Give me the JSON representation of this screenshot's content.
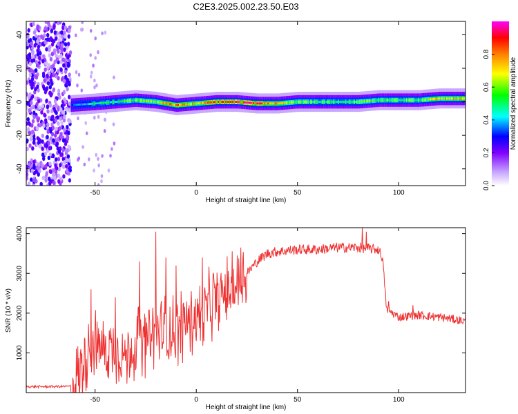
{
  "figure_title": "C2E3.2025.002.23.50.E03",
  "chart_data": [
    {
      "type": "heatmap",
      "xlabel": "Height of straight line (km)",
      "ylabel": "Frequency (Hz)",
      "xlim": [
        -84,
        133
      ],
      "ylim": [
        -50,
        48
      ],
      "xticks": [
        "-50",
        "0",
        "50",
        "100"
      ],
      "yticks": [
        "40",
        "20",
        "0",
        "-20",
        "-40"
      ],
      "colorbar": {
        "label": "Normalized spectral amplitude",
        "range": [
          0,
          1
        ],
        "ticks": [
          "0.0",
          "0.2",
          "0.4",
          "0.6",
          "0.8"
        ],
        "colors": [
          "#ffffff",
          "#8000ff",
          "#0000ff",
          "#00ffff",
          "#00ff00",
          "#ffff00",
          "#ff8000",
          "#ff0000",
          "#ff00ff"
        ]
      },
      "ridge": {
        "x": [
          -62,
          -50,
          -40,
          -30,
          -20,
          -10,
          0,
          10,
          20,
          30,
          40,
          50,
          60,
          70,
          80,
          90,
          100,
          110,
          120,
          133
        ],
        "frequency": [
          -2,
          -1,
          0,
          1,
          0,
          -2,
          -1,
          0,
          0,
          -1,
          -1,
          0,
          0,
          0,
          0,
          1,
          1,
          1,
          2,
          2
        ],
        "amplitude": [
          0.3,
          0.5,
          0.5,
          0.6,
          0.65,
          0.8,
          0.7,
          0.85,
          0.9,
          0.9,
          0.7,
          0.6,
          0.55,
          0.55,
          0.55,
          0.6,
          0.55,
          0.6,
          0.7,
          0.7
        ]
      },
      "noise_region_x": [
        -84,
        -62
      ]
    },
    {
      "type": "line",
      "xlabel": "Height of straight line (km)",
      "ylabel": "SNR (10 * v/v)",
      "xlim": [
        -84,
        133
      ],
      "ylim": [
        0,
        4150
      ],
      "xticks": [
        "-50",
        "0",
        "50",
        "100"
      ],
      "yticks": [
        "4000",
        "3000",
        "2000",
        "1000"
      ],
      "series": [
        {
          "color": "#ee3030",
          "x": [
            -84,
            -70,
            -62,
            -58,
            -55,
            -52,
            -50,
            -45,
            -40,
            -35,
            -30,
            -25,
            -20,
            -15,
            -10,
            -5,
            0,
            5,
            10,
            15,
            20,
            25,
            30,
            35,
            40,
            50,
            60,
            70,
            80,
            90,
            92,
            94,
            100,
            110,
            120,
            133
          ],
          "values": [
            150,
            150,
            160,
            500,
            900,
            1300,
            1200,
            1100,
            1100,
            900,
            1200,
            1300,
            1500,
            1500,
            1600,
            1800,
            1900,
            2100,
            2400,
            2500,
            2700,
            3000,
            3300,
            3500,
            3550,
            3600,
            3600,
            3650,
            3650,
            3600,
            3400,
            2100,
            1900,
            1950,
            1900,
            1800
          ],
          "spikes": [
            [
              -20,
              4050
            ],
            [
              -28,
              3300
            ],
            [
              -52,
              2600
            ],
            [
              -40,
              2400
            ],
            [
              -15,
              3400
            ],
            [
              -10,
              3200
            ],
            [
              3,
              3400
            ],
            [
              22,
              3650
            ],
            [
              82,
              4150
            ],
            [
              84,
              4050
            ],
            [
              95,
              2300
            ],
            [
              107,
              2200
            ]
          ]
        }
      ]
    }
  ]
}
